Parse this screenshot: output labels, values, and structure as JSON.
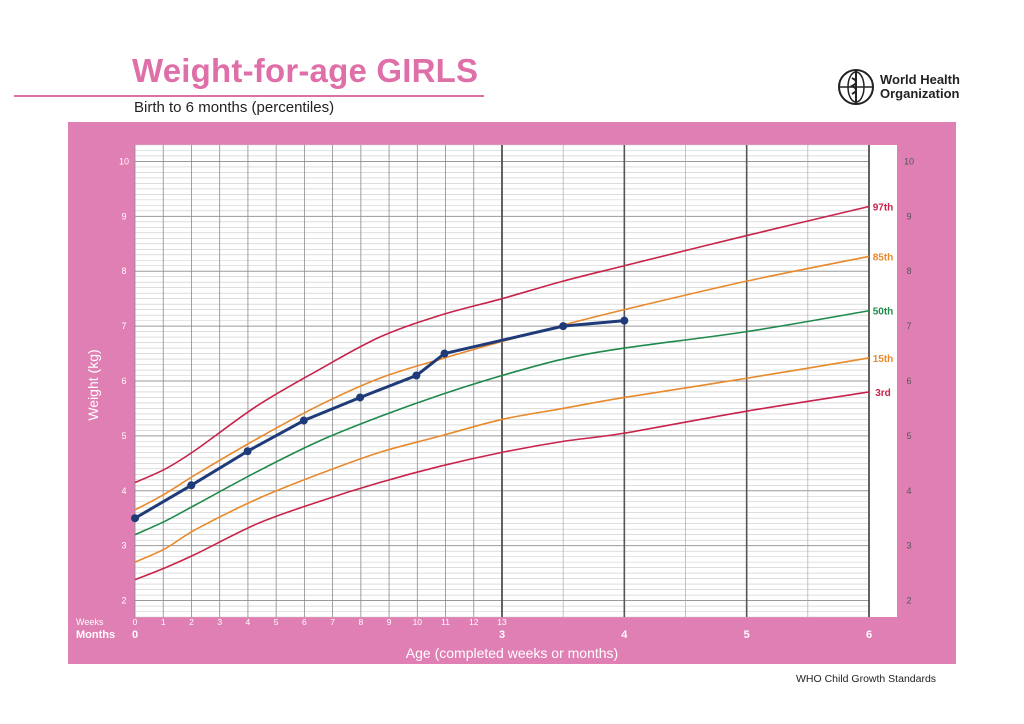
{
  "header": {
    "title": "Weight-for-age GIRLS",
    "subtitle": "Birth to 6 months (percentiles)",
    "organization_line1": "World Health",
    "organization_line2": "Organization",
    "org_icon": "who-emblem-icon"
  },
  "footer": {
    "source": "WHO Child Growth Standards"
  },
  "colors": {
    "frame": "#e07fb3",
    "p3": "#c8234a",
    "p15": "#e8892b",
    "p50": "#1f8a4c",
    "p85": "#e8892b",
    "p97": "#c8234a",
    "child": "#1e3a78"
  },
  "chart_data": {
    "type": "line",
    "title": "Weight-for-age GIRLS",
    "subtitle": "Birth to 6 months (percentiles)",
    "xlabel": "Age (completed weeks or months)",
    "ylabel": "Weight (kg)",
    "x_unit": "months",
    "xlim": [
      0,
      6
    ],
    "ylim": [
      1.7,
      10.3
    ],
    "y_ticks": [
      2,
      3,
      4,
      5,
      6,
      7,
      8,
      9,
      10
    ],
    "week_ticks": [
      "0",
      "1",
      "2",
      "3",
      "4",
      "5",
      "6",
      "7",
      "8",
      "9",
      "10",
      "11",
      "12",
      "13"
    ],
    "month_ticks": [
      "0",
      "3",
      "4",
      "5",
      "6"
    ],
    "weeks_row_label": "Weeks",
    "months_row_label": "Months",
    "grid": true,
    "legend": "labels at right end of curves",
    "series": [
      {
        "name": "97th",
        "color_key": "p97",
        "x": [
          0,
          0.25,
          0.5,
          1,
          1.5,
          2,
          2.5,
          3,
          3.5,
          4,
          5,
          6
        ],
        "y": [
          4.15,
          4.4,
          4.75,
          5.55,
          6.2,
          6.8,
          7.2,
          7.5,
          7.82,
          8.1,
          8.65,
          9.18
        ]
      },
      {
        "name": "85th",
        "color_key": "p85",
        "x": [
          0,
          0.25,
          0.5,
          1,
          1.5,
          2,
          2.5,
          3,
          3.5,
          4,
          5,
          6
        ],
        "y": [
          3.65,
          3.95,
          4.3,
          4.95,
          5.55,
          6.05,
          6.4,
          6.72,
          7.02,
          7.3,
          7.82,
          8.27
        ]
      },
      {
        "name": "50th",
        "color_key": "p50",
        "x": [
          0,
          0.25,
          0.5,
          1,
          1.5,
          2,
          2.5,
          3,
          3.5,
          4,
          5,
          6
        ],
        "y": [
          3.2,
          3.45,
          3.75,
          4.35,
          4.9,
          5.35,
          5.75,
          6.1,
          6.4,
          6.6,
          6.9,
          7.28
        ]
      },
      {
        "name": "15th",
        "color_key": "p15",
        "x": [
          0,
          0.25,
          0.5,
          1,
          1.5,
          2,
          2.5,
          3,
          3.5,
          4,
          5,
          6
        ],
        "y": [
          2.7,
          2.95,
          3.3,
          3.85,
          4.3,
          4.7,
          5.0,
          5.3,
          5.5,
          5.7,
          6.05,
          6.42
        ]
      },
      {
        "name": "3rd",
        "color_key": "p3",
        "x": [
          0,
          0.25,
          0.5,
          1,
          1.5,
          2,
          2.5,
          3,
          3.5,
          4,
          5,
          6
        ],
        "y": [
          2.38,
          2.6,
          2.85,
          3.4,
          3.8,
          4.15,
          4.45,
          4.7,
          4.9,
          5.05,
          5.45,
          5.8
        ]
      }
    ],
    "child_measurements": {
      "color_key": "child",
      "x": [
        0,
        0.46,
        0.92,
        1.38,
        1.84,
        2.3,
        2.53,
        3.5,
        4.0
      ],
      "y": [
        3.5,
        4.1,
        4.72,
        5.28,
        5.7,
        6.1,
        6.5,
        7.0,
        7.1
      ]
    }
  }
}
